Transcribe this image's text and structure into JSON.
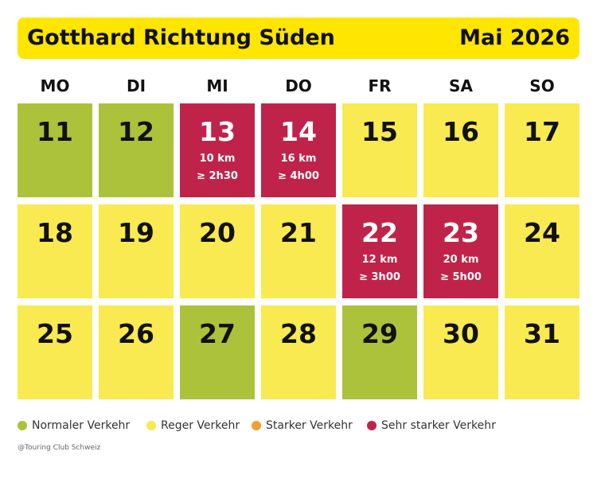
{
  "header": {
    "title": "Gotthard Richtung Süden",
    "month": "Mai 2026"
  },
  "weekdays": [
    "MO",
    "DI",
    "MI",
    "DO",
    "FR",
    "SA",
    "SO"
  ],
  "weeks": [
    [
      {
        "day": 11,
        "color": "#acc23b",
        "text_color": "#111111"
      },
      {
        "day": 12,
        "color": "#acc23b",
        "text_color": "#111111"
      },
      {
        "day": 13,
        "color": "#c0234a",
        "text_color": "#ffffff",
        "length": "10 km",
        "duration": "≥ 2h30"
      },
      {
        "day": 14,
        "color": "#c0234a",
        "text_color": "#ffffff",
        "length": "16 km",
        "duration": "≥ 4h00"
      },
      {
        "day": 15,
        "color": "#f8ea50",
        "text_color": "#111111"
      },
      {
        "day": 16,
        "color": "#f8ea50",
        "text_color": "#111111"
      },
      {
        "day": 17,
        "color": "#f8ea50",
        "text_color": "#111111"
      }
    ],
    [
      {
        "day": 18,
        "color": "#f8ea50",
        "text_color": "#111111"
      },
      {
        "day": 19,
        "color": "#f8ea50",
        "text_color": "#111111"
      },
      {
        "day": 20,
        "color": "#f8ea50",
        "text_color": "#111111"
      },
      {
        "day": 21,
        "color": "#f8ea50",
        "text_color": "#111111"
      },
      {
        "day": 22,
        "color": "#c0234a",
        "text_color": "#ffffff",
        "length": "12 km",
        "duration": "≥ 3h00"
      },
      {
        "day": 23,
        "color": "#c0234a",
        "text_color": "#ffffff",
        "length": "20 km",
        "duration": "≥ 5h00"
      },
      {
        "day": 24,
        "color": "#f8ea50",
        "text_color": "#111111"
      }
    ],
    [
      {
        "day": 25,
        "color": "#f8ea50",
        "text_color": "#111111"
      },
      {
        "day": 26,
        "color": "#f8ea50",
        "text_color": "#111111"
      },
      {
        "day": 27,
        "color": "#acc23b",
        "text_color": "#111111"
      },
      {
        "day": 28,
        "color": "#f8ea50",
        "text_color": "#111111"
      },
      {
        "day": 29,
        "color": "#acc23b",
        "text_color": "#111111"
      },
      {
        "day": 30,
        "color": "#f8ea50",
        "text_color": "#111111"
      },
      {
        "day": 31,
        "color": "#f8ea50",
        "text_color": "#111111"
      }
    ]
  ],
  "legend": [
    {
      "name": "Normaler Verkehr",
      "color": "#acc23b"
    },
    {
      "name": "Reger Verkehr",
      "color": "#f8ea50"
    },
    {
      "name": "Starker Verkehr",
      "color": "#f0a030"
    },
    {
      "name": "Sehr starker Verkehr",
      "color": "#c0234a"
    }
  ],
  "credit": "@Touring Club Schweiz"
}
